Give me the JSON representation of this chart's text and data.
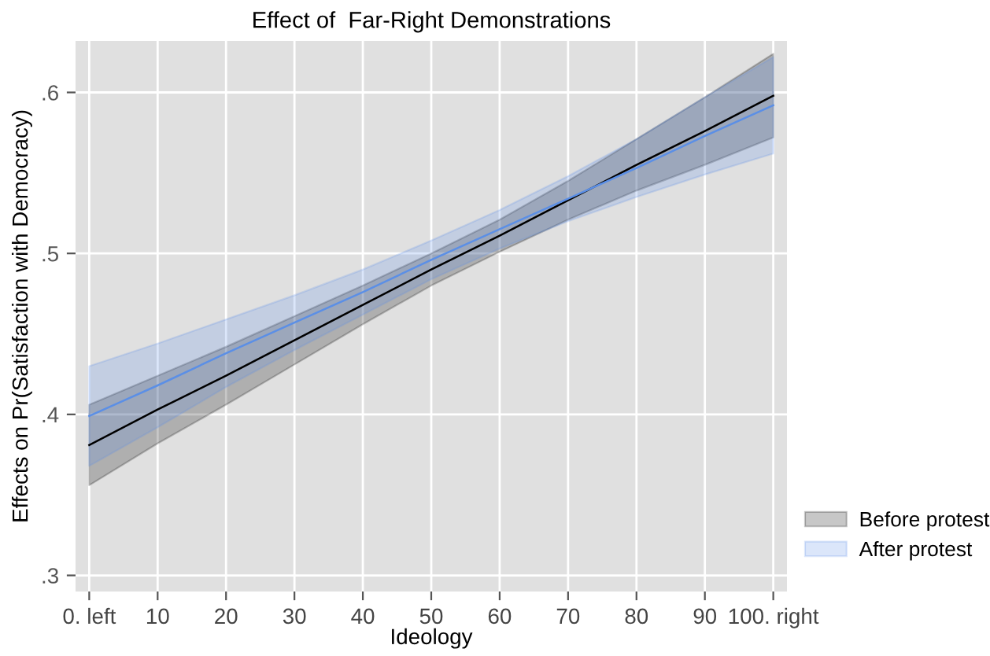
{
  "chart_data": {
    "type": "line",
    "title": "Effect of  Far-Right Demonstrations",
    "xlabel": "Ideology",
    "ylabel": "Effects on Pr(Satisfaction with Democracy)",
    "x": [
      0,
      10,
      20,
      30,
      40,
      50,
      60,
      70,
      80,
      90,
      100
    ],
    "series": [
      {
        "name": "Before protest",
        "color": "#000000",
        "values": [
          0.381,
          0.403,
          0.424,
          0.446,
          0.468,
          0.49,
          0.511,
          0.533,
          0.555,
          0.576,
          0.598
        ],
        "lower": [
          0.356,
          0.382,
          0.406,
          0.431,
          0.456,
          0.48,
          0.501,
          0.521,
          0.539,
          0.555,
          0.572
        ],
        "upper": [
          0.406,
          0.424,
          0.442,
          0.461,
          0.48,
          0.5,
          0.521,
          0.545,
          0.571,
          0.597,
          0.624
        ]
      },
      {
        "name": "After protest",
        "color": "#5b8fe6",
        "values": [
          0.399,
          0.418,
          0.438,
          0.457,
          0.476,
          0.496,
          0.515,
          0.534,
          0.553,
          0.573,
          0.592
        ],
        "lower": [
          0.368,
          0.392,
          0.417,
          0.44,
          0.462,
          0.484,
          0.503,
          0.52,
          0.535,
          0.549,
          0.562
        ],
        "upper": [
          0.43,
          0.444,
          0.459,
          0.474,
          0.49,
          0.508,
          0.527,
          0.548,
          0.571,
          0.597,
          0.622
        ]
      }
    ],
    "xlim": [
      -2,
      102
    ],
    "ylim": [
      0.29,
      0.632
    ],
    "xticks": [
      {
        "value": 0,
        "label": "0. left"
      },
      10,
      20,
      30,
      40,
      50,
      60,
      70,
      80,
      90,
      {
        "value": 100,
        "label": "100. right"
      }
    ],
    "yticks": [
      {
        "value": 0.3,
        "label": ".3"
      },
      {
        "value": 0.4,
        "label": ".4"
      },
      {
        "value": 0.5,
        "label": ".5"
      },
      {
        "value": 0.6,
        "label": ".6"
      }
    ],
    "grid": true,
    "legend": "bottom right",
    "marker": "none",
    "line_style": "solid"
  }
}
